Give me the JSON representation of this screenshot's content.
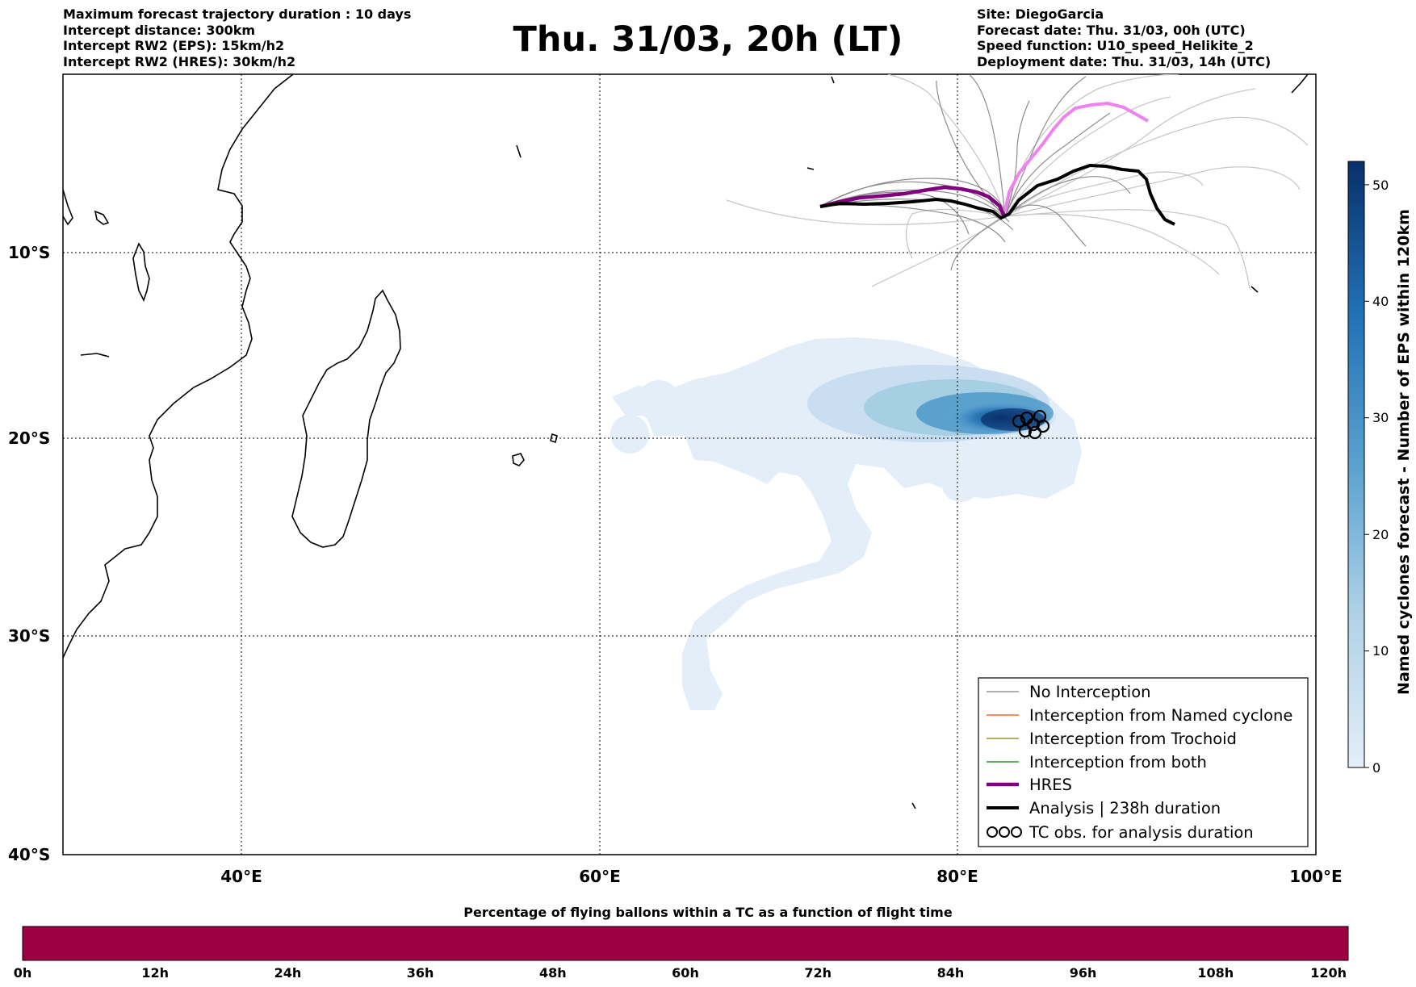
{
  "header": {
    "left": [
      "Maximum forecast trajectory duration : 10 days",
      "Intercept distance: 300km",
      "Intercept RW2 (EPS):  15km/h2",
      "Intercept RW2 (HRES): 30km/h2"
    ],
    "title": "Thu. 31/03, 20h (LT)",
    "right": [
      "Site: DiegoGarcia",
      "Forecast date: Thu. 31/03, 00h (UTC)",
      "Speed function: U10_speed_Helikite_2",
      "Deployment date: Thu. 31/03, 14h (UTC)"
    ]
  },
  "map": {
    "lon_range": [
      30,
      100
    ],
    "lat_range": [
      -40,
      1
    ],
    "lon_ticks": [
      "40°E",
      "60°E",
      "80°E",
      "100°E"
    ],
    "lat_ticks": [
      "10°S",
      "20°S",
      "30°S",
      "40°S"
    ],
    "grid": "dotted",
    "legend": {
      "placement": "bottom-right",
      "items": [
        {
          "label": "No Interception",
          "color": "#808080",
          "style": "thin-line"
        },
        {
          "label": "Interception from Named cyclone",
          "color": "#ff4500",
          "style": "thin-line"
        },
        {
          "label": "Interception from Trochoid",
          "color": "#808000",
          "style": "thin-line"
        },
        {
          "label": "Interception from both",
          "color": "#008000",
          "style": "thin-line"
        },
        {
          "label": "HRES",
          "color": "#800080",
          "style": "thick-line"
        },
        {
          "label": "Analysis | 238h duration",
          "color": "#000000",
          "style": "thick-line"
        },
        {
          "label": "TC obs. for analysis duration",
          "color": "#000000",
          "style": "cyclone-symbols"
        }
      ]
    },
    "colors": {
      "hres": "#800080",
      "analysis": "#000000",
      "forecast_track": "#ee82ee",
      "no_interception": "#808080",
      "ensemble_light": "#c8c8c8"
    }
  },
  "colorbar_right": {
    "label": "Named cyclones forecast - Number of EPS within 120km",
    "ticks": [
      "0",
      "10",
      "20",
      "30",
      "40",
      "50"
    ],
    "range": [
      0,
      52
    ],
    "colormap": "Blues"
  },
  "colorbar_bottom": {
    "title": "Percentage of flying ballons within a TC as a function of flight time",
    "ticks": [
      "0h",
      "12h",
      "24h",
      "36h",
      "48h",
      "60h",
      "72h",
      "84h",
      "96h",
      "108h",
      "120h"
    ],
    "fill_color": "#9e0142"
  }
}
